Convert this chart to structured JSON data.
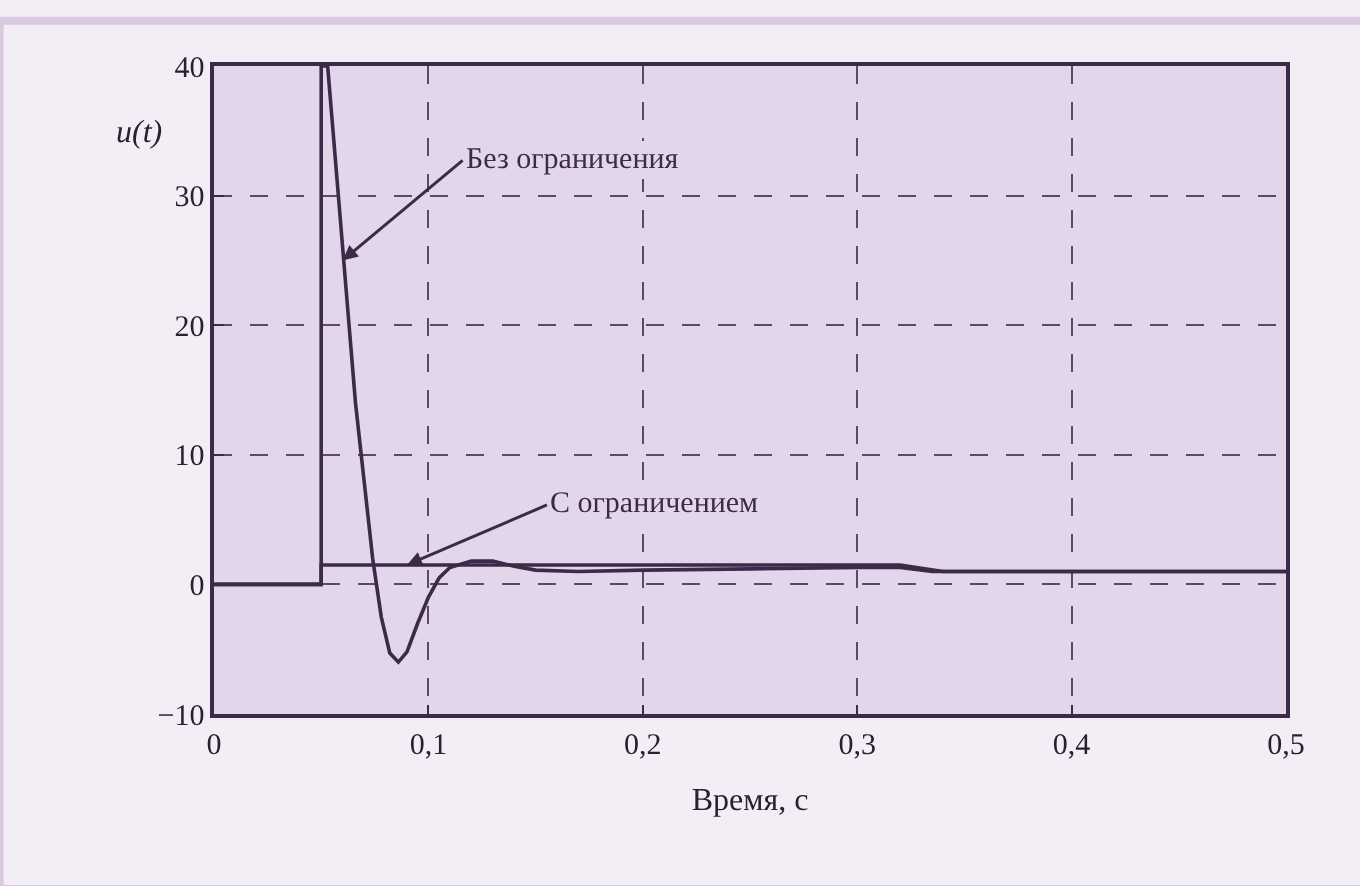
{
  "chart_data": {
    "type": "line",
    "xlabel": "Время, с",
    "ylabel": "u(t)",
    "xlim": [
      0,
      0.5
    ],
    "ylim": [
      -10,
      40
    ],
    "xticks": [
      0,
      {
        "value": 0.1,
        "label": "0,1"
      },
      {
        "value": 0.2,
        "label": "0,2"
      },
      {
        "value": 0.3,
        "label": "0,3"
      },
      {
        "value": 0.4,
        "label": "0,4"
      },
      {
        "value": 0.5,
        "label": "0,5"
      }
    ],
    "yticks": [
      -10,
      0,
      10,
      20,
      30,
      40
    ],
    "grid": true,
    "line_style": "solid",
    "marker": "none",
    "series": [
      {
        "color": "#3b2a48",
        "x": [
          0,
          0.05,
          0.05,
          0.053,
          0.058,
          0.062,
          0.066,
          0.07,
          0.074,
          0.078,
          0.082,
          0.086,
          0.09,
          0.095,
          0.1,
          0.105,
          0.11,
          0.12,
          0.13,
          0.14,
          0.15,
          0.17,
          0.2,
          0.25,
          0.3,
          0.32,
          0.335,
          0.5
        ],
        "values": [
          0,
          0,
          40,
          40,
          30,
          22,
          14,
          8,
          2,
          -2.5,
          -5.3,
          -6,
          -5.2,
          -3,
          -1,
          0.5,
          1.3,
          1.8,
          1.8,
          1.4,
          1.1,
          1,
          1.1,
          1.2,
          1.3,
          1.3,
          1,
          1
        ]
      },
      {
        "color": "#3b2a48",
        "x": [
          0,
          0.05,
          0.05,
          0.32,
          0.34,
          0.5
        ],
        "values": [
          0,
          0,
          1.5,
          1.5,
          1,
          1
        ]
      }
    ],
    "annotations": [
      {
        "text": "Без ограничения",
        "x": 0.06,
        "y": 25
      },
      {
        "text": "С ограничением",
        "x": 0.09,
        "y": 1.5
      }
    ]
  }
}
